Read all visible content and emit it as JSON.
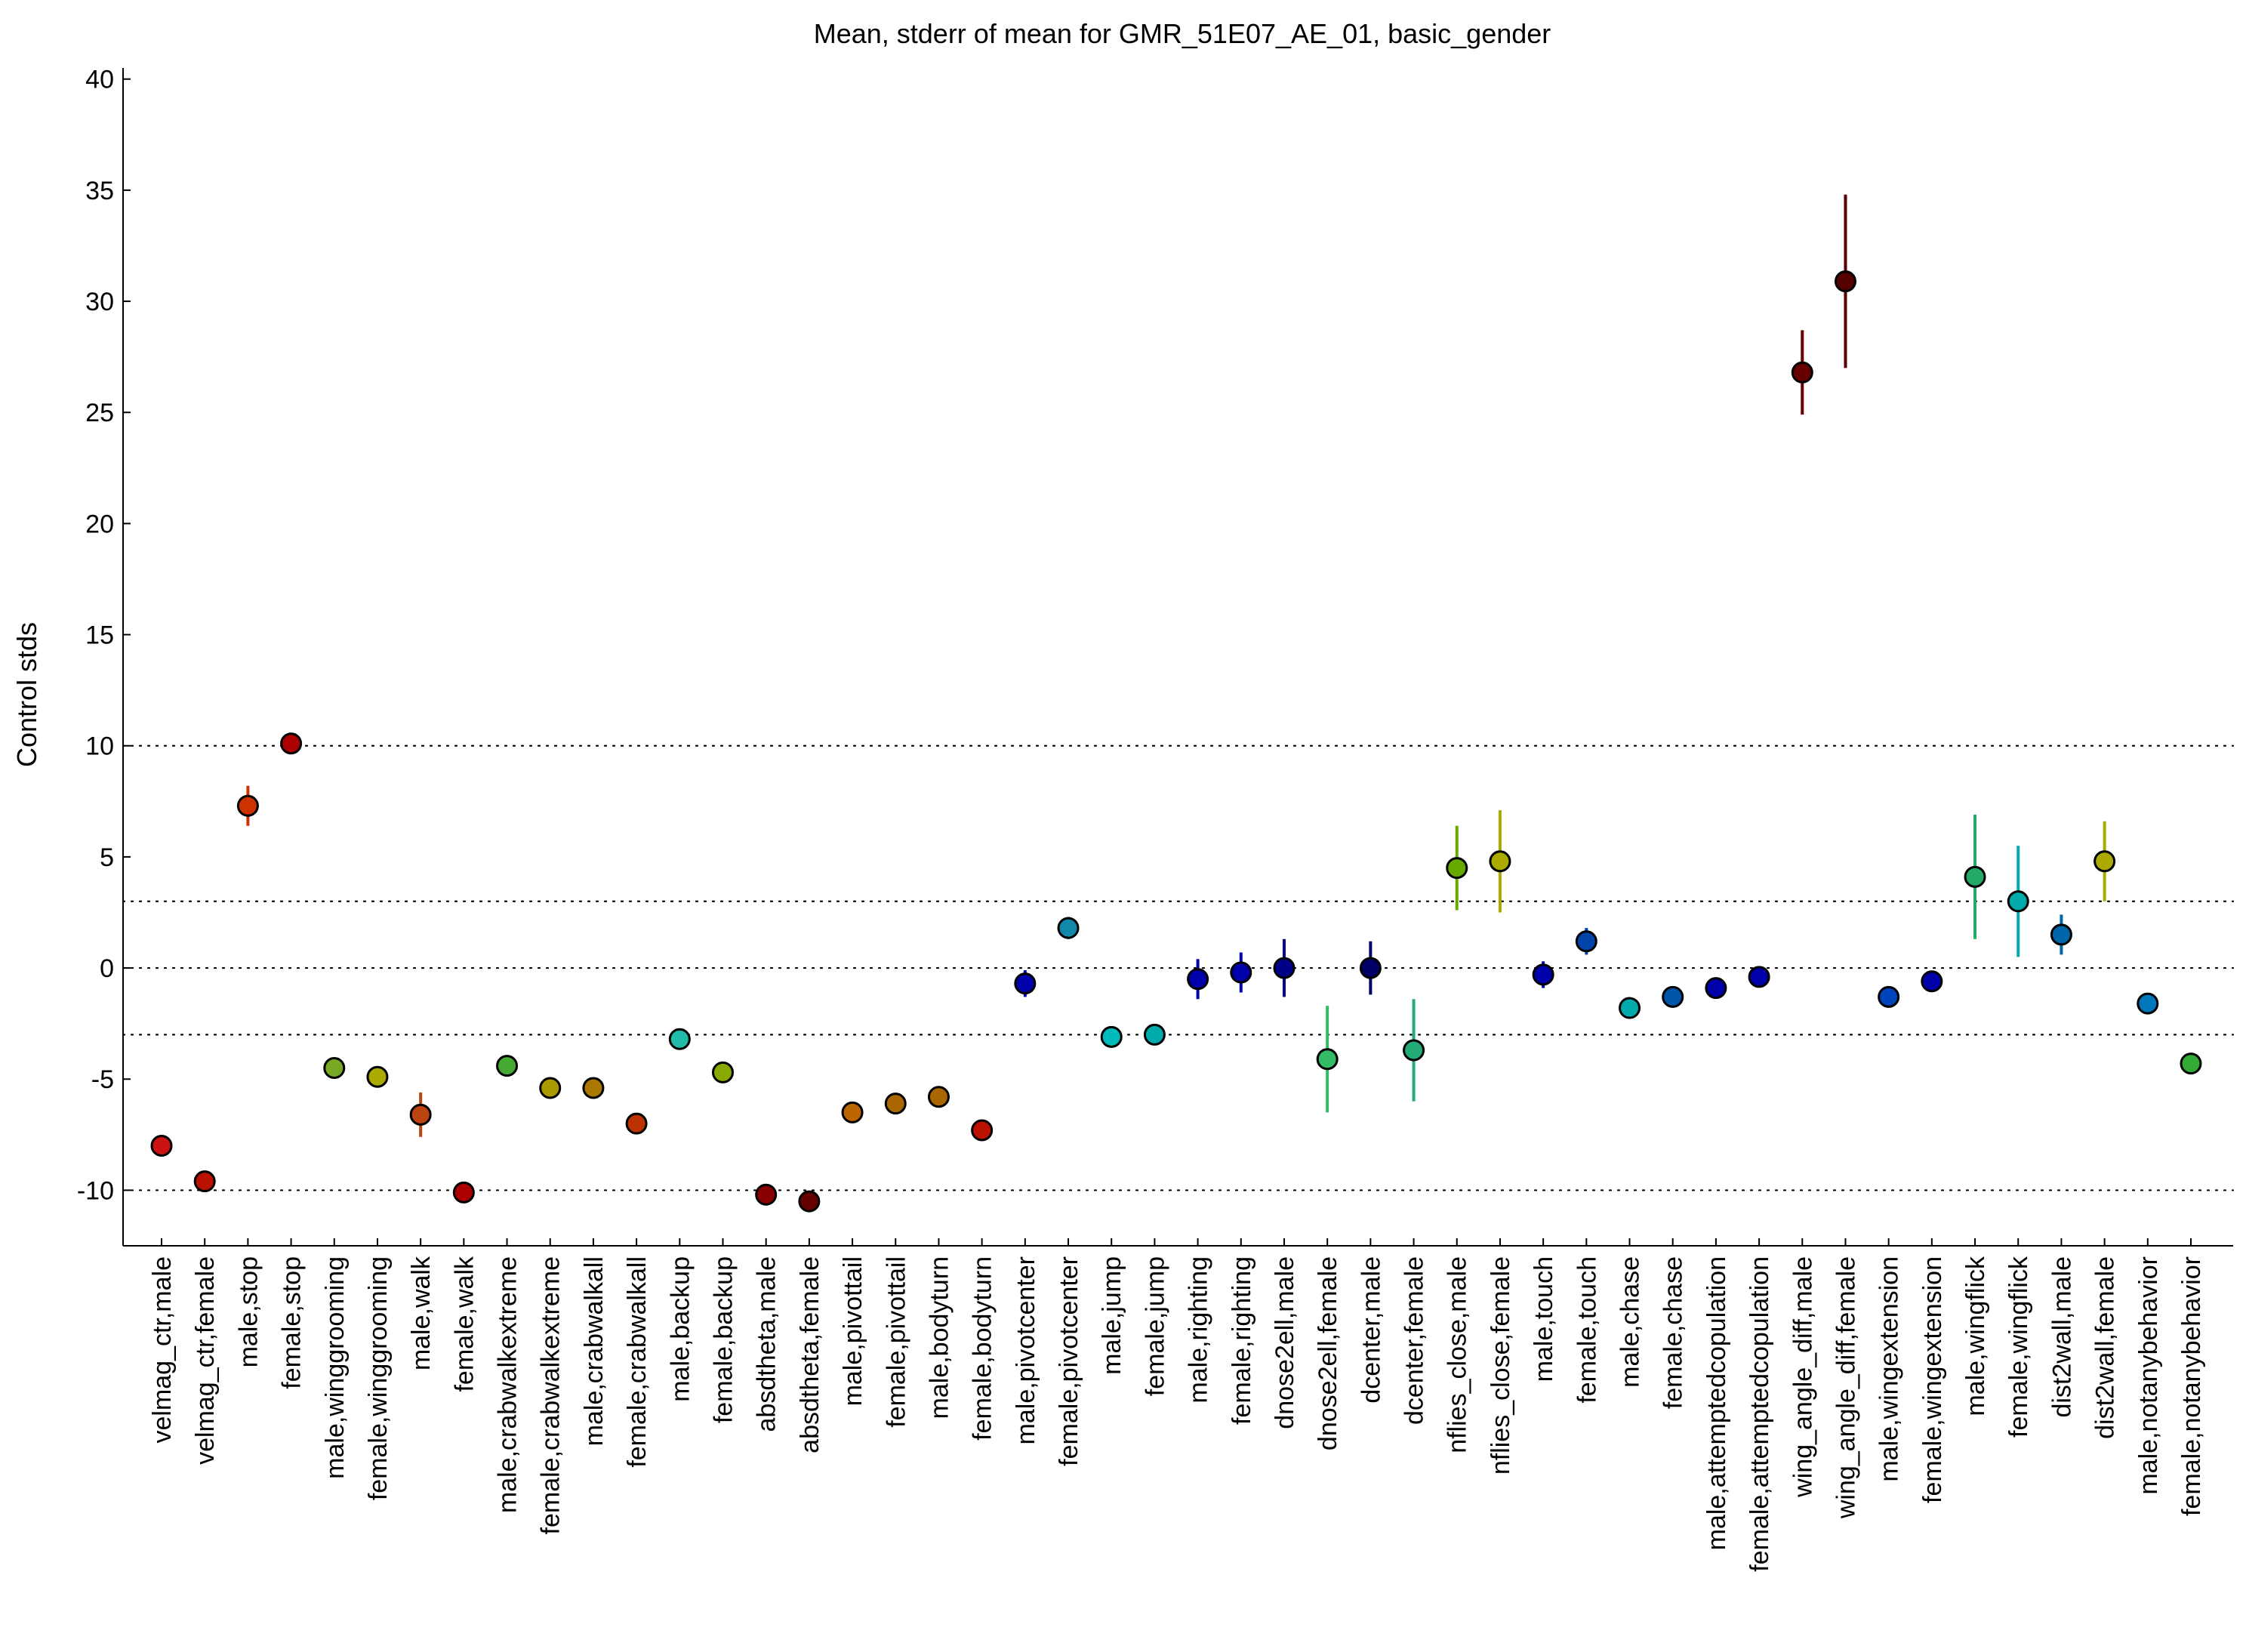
{
  "chart_data": {
    "type": "scatter",
    "title": "Mean, stderr of mean for GMR_51E07_AE_01, basic_gender",
    "xlabel": "",
    "ylabel": "Control stds",
    "ylim": [
      -12.5,
      40.5
    ],
    "yticks": [
      -10,
      -5,
      0,
      5,
      10,
      15,
      20,
      25,
      30,
      35,
      40
    ],
    "reference_lines": [
      -10,
      -3,
      0,
      3,
      10
    ],
    "grid": false,
    "legend": "none",
    "categories": [
      "velmag_ctr,male",
      "velmag_ctr,female",
      "male,stop",
      "female,stop",
      "male,winggrooming",
      "female,winggrooming",
      "male,walk",
      "female,walk",
      "male,crabwalkextreme",
      "female,crabwalkextreme",
      "male,crabwalkall",
      "female,crabwalkall",
      "male,backup",
      "female,backup",
      "absdtheta,male",
      "absdtheta,female",
      "male,pivottail",
      "female,pivottail",
      "male,bodyturn",
      "female,bodyturn",
      "male,pivotcenter",
      "female,pivotcenter",
      "male,jump",
      "female,jump",
      "male,righting",
      "female,righting",
      "dnose2ell,male",
      "dnose2ell,female",
      "dcenter,male",
      "dcenter,female",
      "nflies_close,male",
      "nflies_close,female",
      "male,touch",
      "female,touch",
      "male,chase",
      "female,chase",
      "male,attemptedcopulation",
      "female,attemptedcopulation",
      "wing_angle_diff,male",
      "wing_angle_diff,female",
      "male,wingextension",
      "female,wingextension",
      "male,wingflick",
      "female,wingflick",
      "dist2wall,male",
      "dist2wall,female",
      "male,notanybehavior",
      "female,notanybehavior"
    ],
    "colors": [
      "#cc1111",
      "#bb1100",
      "#cc3300",
      "#aa0000",
      "#77aa22",
      "#aaaa00",
      "#bb4411",
      "#aa0000",
      "#44aa33",
      "#aa9900",
      "#aa7700",
      "#bb3300",
      "#22bbaa",
      "#88aa00",
      "#880000",
      "#660000",
      "#bb6600",
      "#aa6600",
      "#aa6600",
      "#bb1100",
      "#0000aa",
      "#1188aa",
      "#00bbbb",
      "#00aaaa",
      "#0000aa",
      "#0000aa",
      "#000088",
      "#33bb66",
      "#000066",
      "#22aa77",
      "#66aa00",
      "#aaaa00",
      "#0000aa",
      "#0044aa",
      "#00aaaa",
      "#0055aa",
      "#0000aa",
      "#0000aa",
      "#660000",
      "#550000",
      "#0044bb",
      "#0000aa",
      "#22aa66",
      "#00aaaa",
      "#0066aa",
      "#aaaa00",
      "#0077bb",
      "#33aa33"
    ],
    "series": [
      {
        "name": "mean",
        "values": [
          -8.0,
          -9.6,
          7.3,
          10.1,
          -4.5,
          -4.9,
          -6.6,
          -10.1,
          -4.4,
          -5.4,
          -5.4,
          -7.0,
          -3.2,
          -4.7,
          -10.2,
          -10.5,
          -6.5,
          -6.1,
          -5.8,
          -7.3,
          -0.7,
          1.8,
          -3.1,
          -3.0,
          -0.5,
          -0.2,
          0.0,
          -4.1,
          0.0,
          -3.7,
          4.5,
          4.8,
          -0.3,
          1.2,
          -1.8,
          -1.3,
          -0.9,
          -0.4,
          26.8,
          30.9,
          -1.3,
          -0.6,
          4.1,
          3.0,
          1.5,
          4.8,
          -1.6,
          -4.3
        ],
        "stderr": [
          0.3,
          0.3,
          0.9,
          0.4,
          0.2,
          0.3,
          1.0,
          0.3,
          0.2,
          0.3,
          0.2,
          0.2,
          0.2,
          0.2,
          0.2,
          0.2,
          0.2,
          0.2,
          0.2,
          0.2,
          0.6,
          0.5,
          0.2,
          0.2,
          0.9,
          0.9,
          1.3,
          2.4,
          1.2,
          2.3,
          1.9,
          2.3,
          0.6,
          0.6,
          0.2,
          0.2,
          0.2,
          0.2,
          1.9,
          3.9,
          0.2,
          0.2,
          2.8,
          2.5,
          0.9,
          1.8,
          0.2,
          0.3
        ]
      }
    ]
  }
}
